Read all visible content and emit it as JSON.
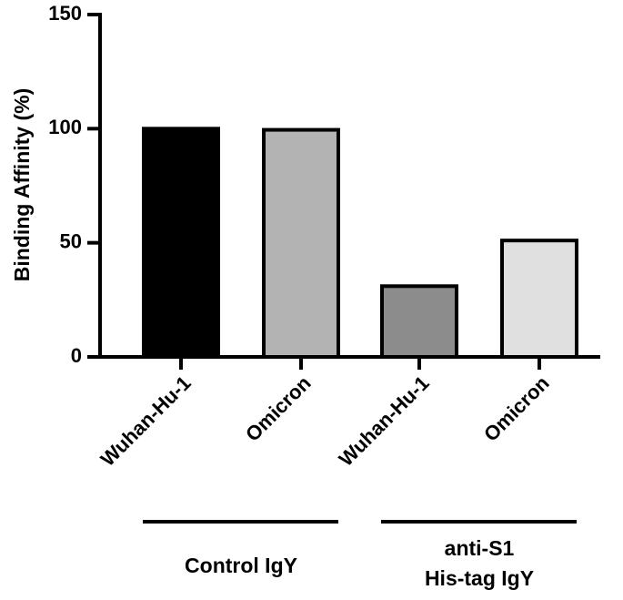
{
  "chart_data": {
    "type": "bar",
    "title": "",
    "xlabel": "",
    "ylabel": "Binding Affinity (%)",
    "ylim": [
      0,
      150
    ],
    "yticks": [
      0,
      50,
      100,
      150
    ],
    "categories": [
      "Wuhan-Hu-1",
      "Omicron",
      "Wuhan-Hu-1",
      "Omicron"
    ],
    "values": [
      100,
      99.5,
      31,
      51
    ],
    "bar_colors": [
      "#000000",
      "#b3b3b3",
      "#8c8c8c",
      "#e0e0e0"
    ],
    "groups": [
      {
        "label": "Control IgY",
        "members": [
          0,
          1
        ]
      },
      {
        "label_line1": "anti-S1",
        "label_line2": "His-tag IgY",
        "members": [
          2,
          3
        ]
      }
    ],
    "grid": false,
    "legend": "none"
  }
}
